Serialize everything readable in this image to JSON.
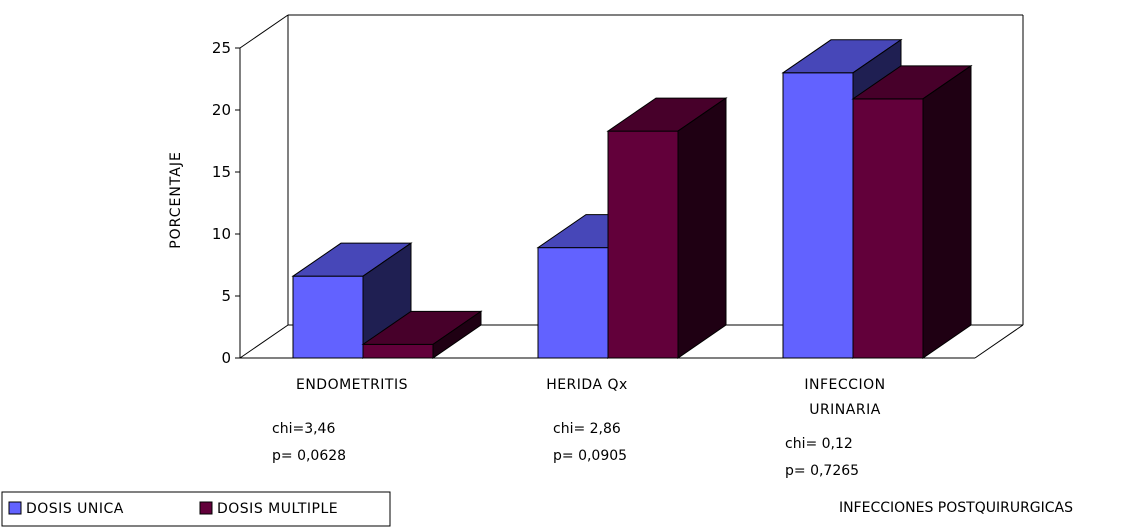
{
  "chart_data": {
    "type": "bar",
    "categories": [
      "ENDOMETRITIS",
      "HERIDA Qx",
      "INFECCION URINARIA"
    ],
    "category_lines": [
      [
        "ENDOMETRITIS"
      ],
      [
        "HERIDA Qx"
      ],
      [
        "INFECCION",
        "URINARIA"
      ]
    ],
    "series": [
      {
        "name": "DOSIS UNICA",
        "values": [
          6.6,
          8.9,
          23.0
        ],
        "color": "#6262ff"
      },
      {
        "name": "DOSIS MULTIPLE",
        "values": [
          1.1,
          18.3,
          20.9
        ],
        "color": "#62003a"
      }
    ],
    "ylabel": "PORCENTAJE",
    "xlabel": "INFECCIONES POSTQUIRURGICAS",
    "ylim": [
      0,
      25
    ],
    "yticks": [
      0,
      5,
      10,
      15,
      20,
      25
    ],
    "annotations": [
      [
        "chi=3,46",
        "p= 0,0628"
      ],
      [
        "chi= 2,86",
        "p= 0,0905"
      ],
      [
        "chi= 0,12",
        "p= 0,7265"
      ]
    ],
    "legend_position": "bottom-left",
    "grid": false
  }
}
